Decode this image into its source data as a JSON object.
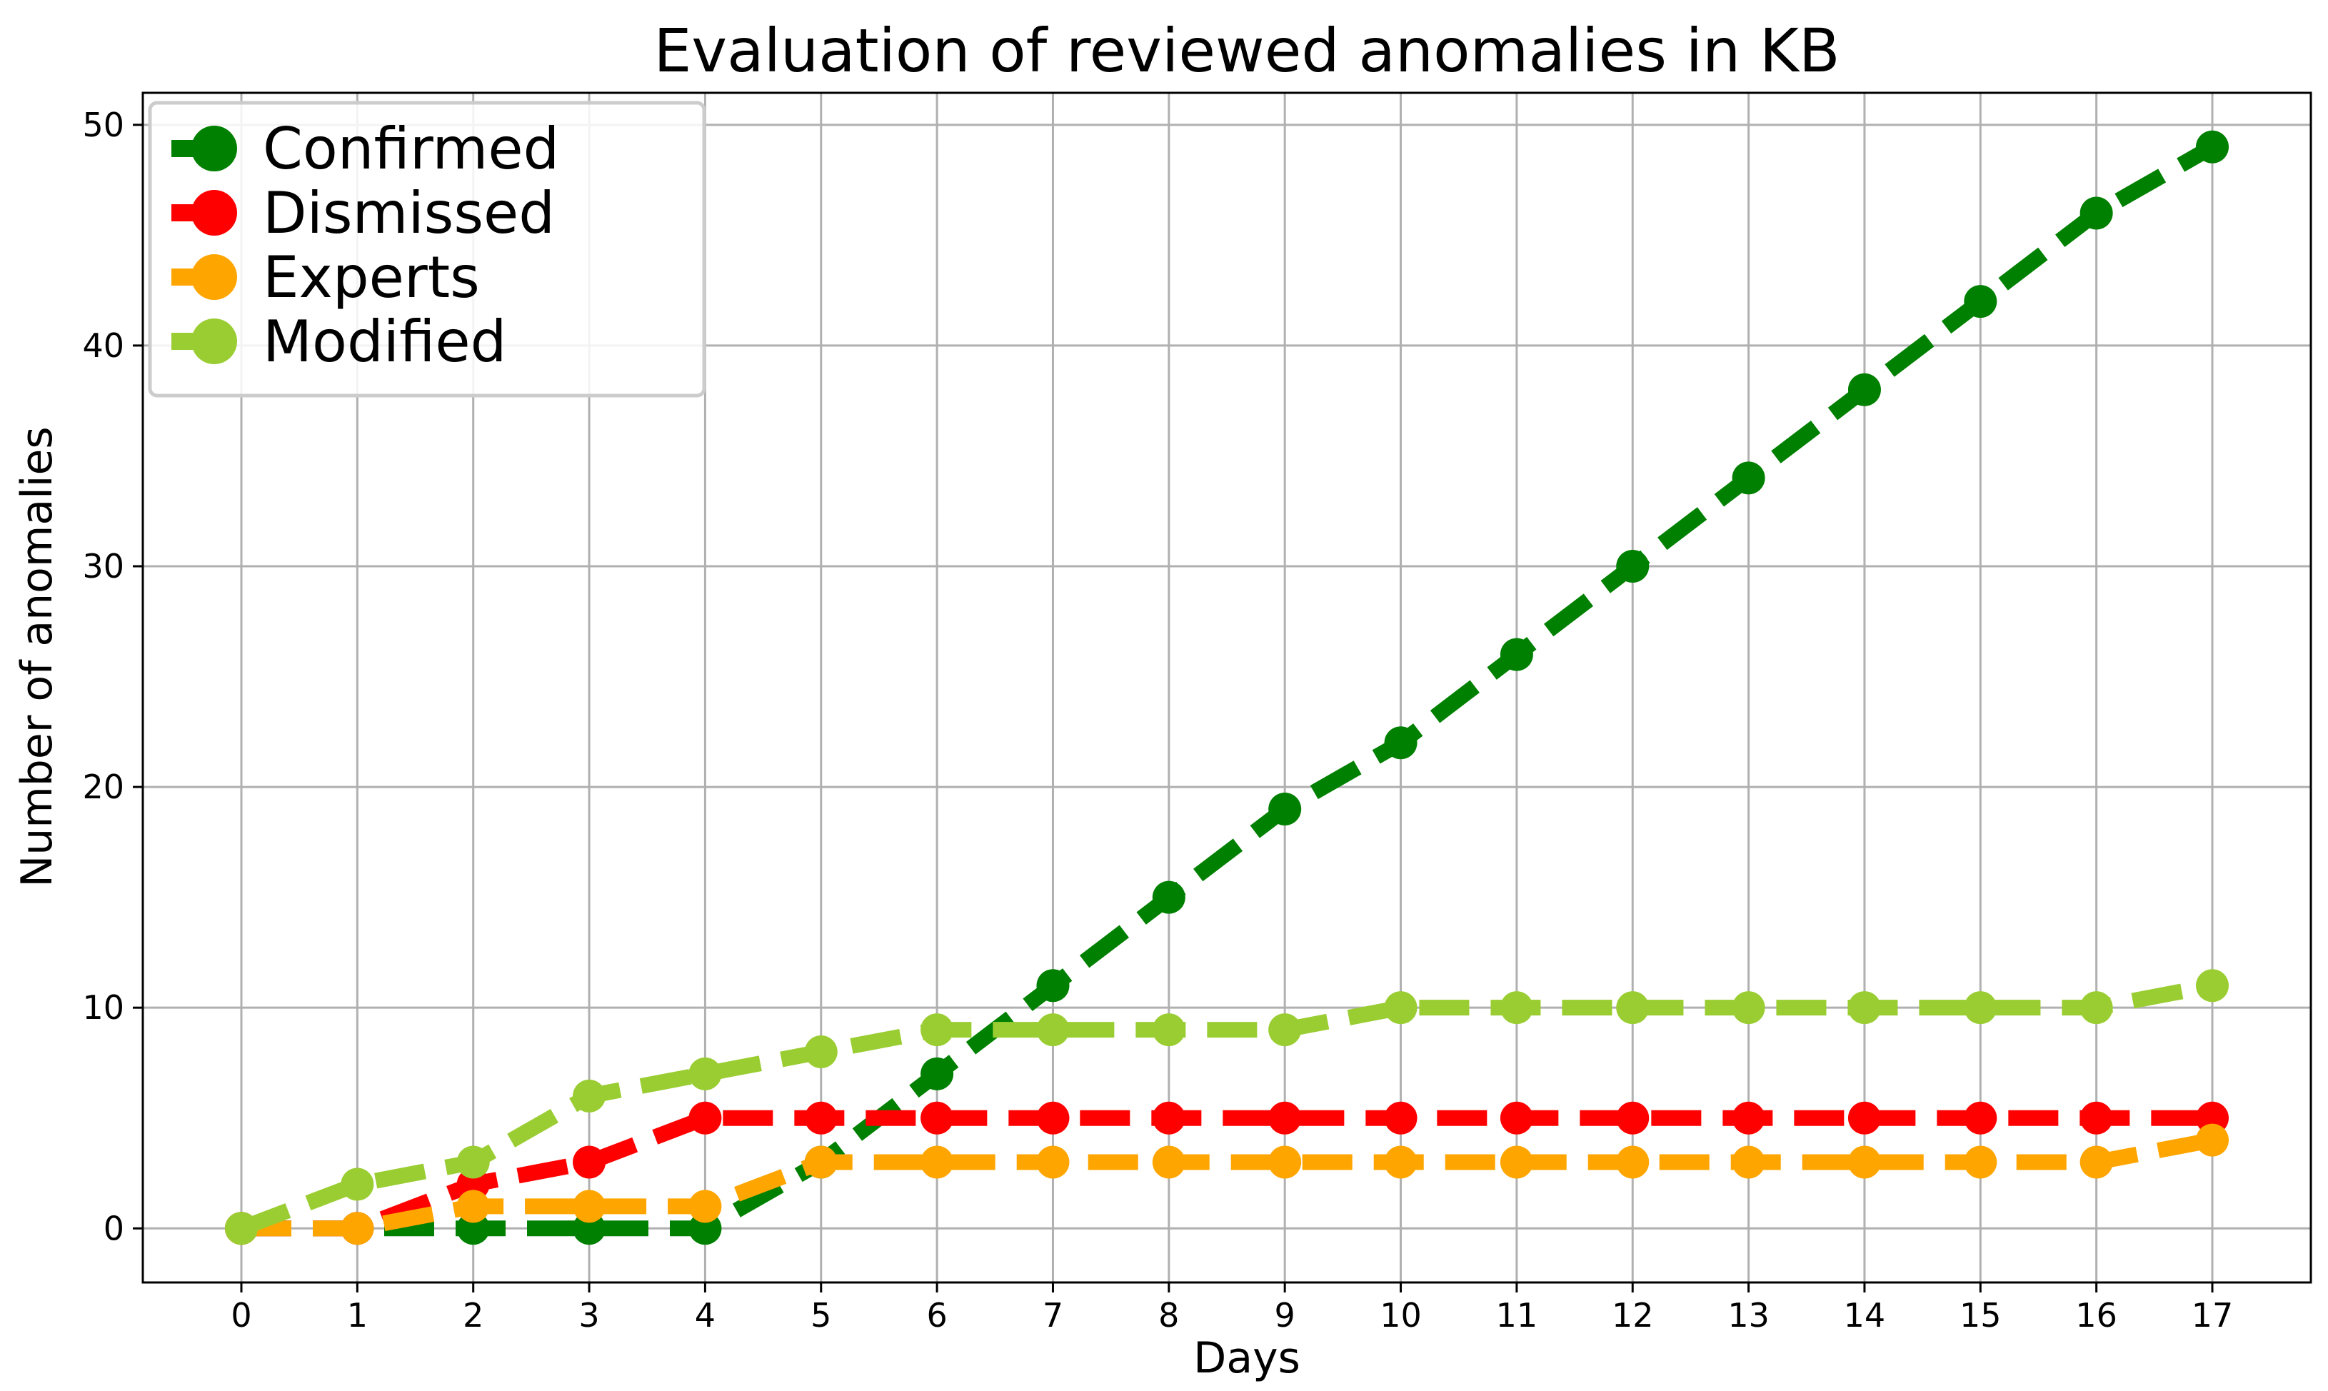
{
  "chart_data": {
    "type": "line",
    "title": "Evaluation of reviewed anomalies in KB",
    "xlabel": "Days",
    "ylabel": "Number of anomalies",
    "x": [
      0,
      1,
      2,
      3,
      4,
      5,
      6,
      7,
      8,
      9,
      10,
      11,
      12,
      13,
      14,
      15,
      16,
      17
    ],
    "xticks": [
      "0",
      "1",
      "2",
      "3",
      "4",
      "5",
      "6",
      "7",
      "8",
      "9",
      "10",
      "11",
      "12",
      "13",
      "14",
      "15",
      "16",
      "17"
    ],
    "yticks": [
      "0",
      "10",
      "20",
      "30",
      "40",
      "50"
    ],
    "ytick_values": [
      0,
      10,
      20,
      30,
      40,
      50
    ],
    "xlim": [
      -0.85,
      17.85
    ],
    "ylim": [
      -2.45,
      51.45
    ],
    "grid": true,
    "legend_position": "top-left",
    "line_style": "dashed",
    "series": [
      {
        "name": "Confirmed",
        "color": "#008000",
        "values": [
          0,
          0,
          0,
          0,
          0,
          3,
          7,
          11,
          15,
          19,
          22,
          26,
          30,
          34,
          38,
          42,
          46,
          49
        ]
      },
      {
        "name": "Dismissed",
        "color": "#ff0000",
        "values": [
          0,
          0,
          2,
          3,
          5,
          5,
          5,
          5,
          5,
          5,
          5,
          5,
          5,
          5,
          5,
          5,
          5,
          5
        ]
      },
      {
        "name": "Experts",
        "color": "#ffa500",
        "values": [
          0,
          0,
          1,
          1,
          1,
          3,
          3,
          3,
          3,
          3,
          3,
          3,
          3,
          3,
          3,
          3,
          3,
          4
        ]
      },
      {
        "name": "Modified",
        "color": "#9acd32",
        "values": [
          0,
          2,
          3,
          6,
          7,
          8,
          9,
          9,
          9,
          9,
          10,
          10,
          10,
          10,
          10,
          10,
          10,
          11
        ]
      }
    ]
  }
}
